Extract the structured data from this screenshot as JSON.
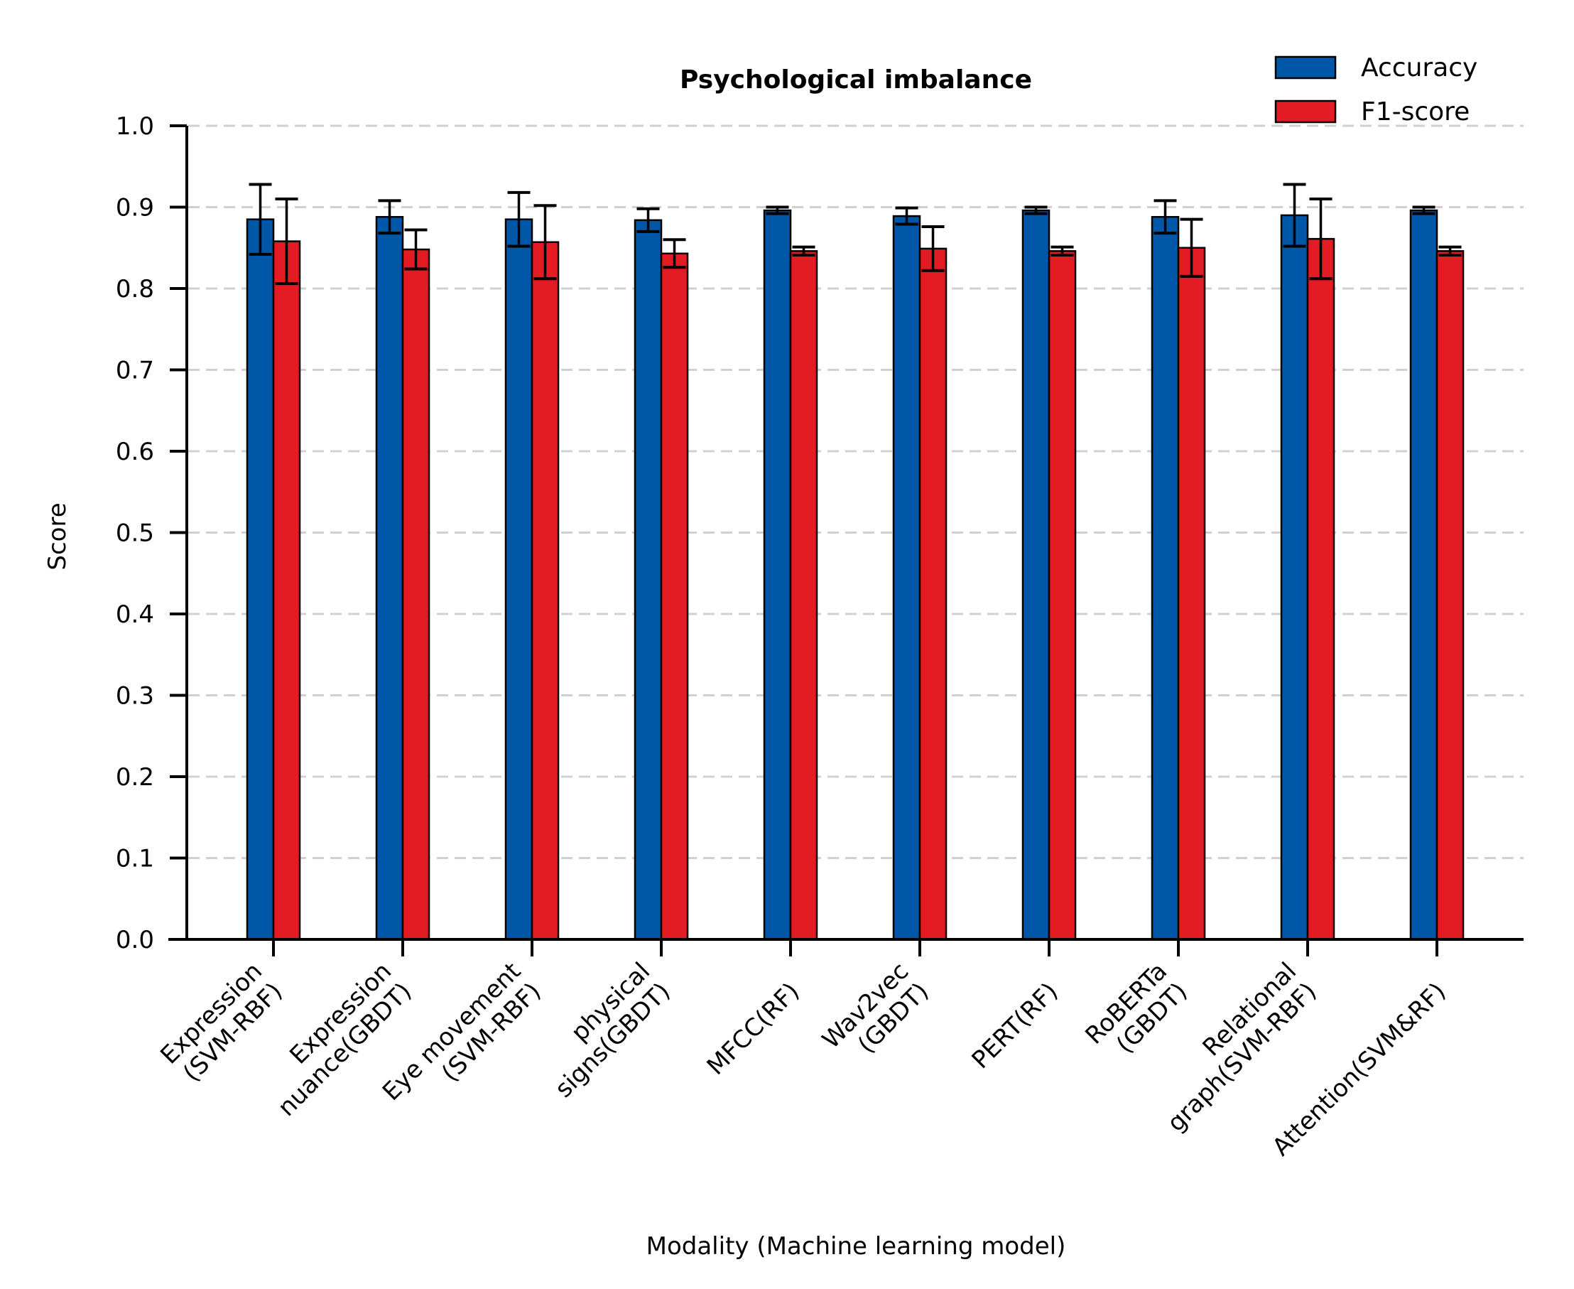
{
  "chart_data": {
    "type": "bar",
    "title": "Psychological imbalance",
    "xlabel": "Modality (Machine learning model)",
    "ylabel": "Score",
    "ylim": [
      0,
      1.0
    ],
    "yticks": [
      "0.0",
      "0.1",
      "0.2",
      "0.3",
      "0.4",
      "0.5",
      "0.6",
      "0.7",
      "0.8",
      "0.9",
      "1.0"
    ],
    "grid": "horizontal dashed",
    "legend_position": "top-right",
    "categories": [
      [
        "Expression",
        "(SVM-RBF)"
      ],
      [
        "Expression",
        "nuance(GBDT)"
      ],
      [
        "Eye movement",
        "(SVM-RBF)"
      ],
      [
        "physical",
        "signs(GBDT)"
      ],
      [
        "MFCC(RF)"
      ],
      [
        "Wav2vec",
        "(GBDT)"
      ],
      [
        "PERT(RF)"
      ],
      [
        "RoBERTa",
        "(GBDT)"
      ],
      [
        "Relational",
        "graph(SVM-RBF)"
      ],
      [
        "Attention(SVM&RF)"
      ]
    ],
    "series": [
      {
        "name": "Accuracy",
        "color": "#0057a8",
        "values": [
          0.885,
          0.888,
          0.885,
          0.884,
          0.896,
          0.889,
          0.896,
          0.888,
          0.89,
          0.896
        ],
        "errors": [
          0.043,
          0.02,
          0.033,
          0.014,
          0.004,
          0.01,
          0.004,
          0.02,
          0.038,
          0.004
        ]
      },
      {
        "name": "F1-score",
        "color": "#e31b23",
        "values": [
          0.858,
          0.848,
          0.857,
          0.843,
          0.846,
          0.849,
          0.846,
          0.85,
          0.861,
          0.846
        ],
        "errors": [
          0.052,
          0.024,
          0.045,
          0.017,
          0.005,
          0.027,
          0.005,
          0.035,
          0.049,
          0.005
        ]
      }
    ]
  }
}
